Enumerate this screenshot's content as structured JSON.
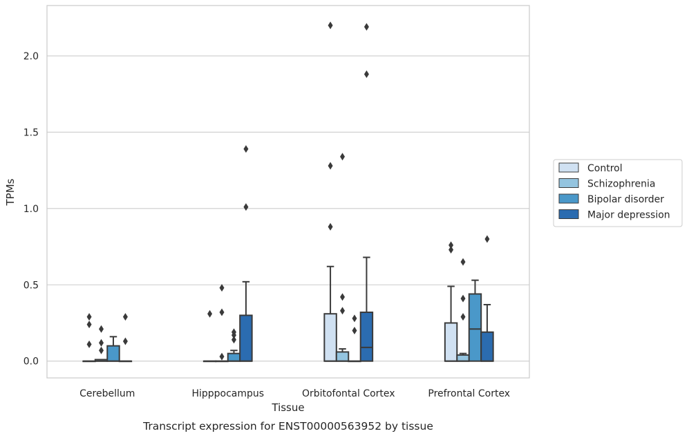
{
  "chart_data": {
    "type": "boxplot",
    "title": "",
    "xlabel": "Tissue",
    "ylabel": "TPMs",
    "caption": "Transcript expression for ENST00000563952 by tissue",
    "ylim": [
      -0.11,
      2.33
    ],
    "yticks": [
      0.0,
      0.5,
      1.0,
      1.5,
      2.0
    ],
    "ytick_labels": [
      "0.0",
      "0.5",
      "1.0",
      "1.5",
      "2.0"
    ],
    "grid": "horizontal",
    "legend_position": "right",
    "categories": [
      "Cerebellum",
      "Hipppocampus",
      "Orbitofontal Cortex",
      "Prefrontal Cortex"
    ],
    "series": [
      {
        "name": "Control",
        "color": "#d0e1f2",
        "boxes": [
          {
            "q1": 0.0,
            "median": 0.0,
            "q3": 0.0,
            "whislo": 0.0,
            "whishi": 0.0,
            "fliers": [
              0.29,
              0.24,
              0.11
            ]
          },
          {
            "q1": 0.0,
            "median": 0.0,
            "q3": 0.0,
            "whislo": 0.0,
            "whishi": 0.0,
            "fliers": [
              0.31
            ]
          },
          {
            "q1": 0.0,
            "median": 0.0,
            "q3": 0.31,
            "whislo": 0.0,
            "whishi": 0.62,
            "fliers": [
              2.2,
              1.28,
              0.88
            ]
          },
          {
            "q1": 0.0,
            "median": 0.0,
            "q3": 0.25,
            "whislo": 0.0,
            "whishi": 0.49,
            "fliers": [
              0.76,
              0.73
            ]
          }
        ]
      },
      {
        "name": "Schizophrenia",
        "color": "#94c4df",
        "boxes": [
          {
            "q1": 0.0,
            "median": 0.0,
            "q3": 0.01,
            "whislo": 0.0,
            "whishi": 0.01,
            "fliers": [
              0.21,
              0.12,
              0.07
            ]
          },
          {
            "q1": 0.0,
            "median": 0.0,
            "q3": 0.0,
            "whislo": 0.0,
            "whishi": 0.0,
            "fliers": [
              0.48,
              0.32,
              0.03
            ]
          },
          {
            "q1": 0.0,
            "median": 0.0,
            "q3": 0.06,
            "whislo": 0.0,
            "whishi": 0.08,
            "fliers": [
              1.34,
              0.42,
              0.33
            ]
          },
          {
            "q1": 0.0,
            "median": 0.0,
            "q3": 0.04,
            "whislo": 0.0,
            "whishi": 0.05,
            "fliers": [
              0.65,
              0.41,
              0.29
            ]
          }
        ]
      },
      {
        "name": "Bipolar disorder",
        "color": "#4a98c9",
        "boxes": [
          {
            "q1": 0.0,
            "median": 0.0,
            "q3": 0.1,
            "whislo": 0.0,
            "whishi": 0.16,
            "fliers": []
          },
          {
            "q1": 0.0,
            "median": 0.0,
            "q3": 0.05,
            "whislo": 0.0,
            "whishi": 0.07,
            "fliers": [
              0.19,
              0.17,
              0.14
            ]
          },
          {
            "q1": 0.0,
            "median": 0.0,
            "q3": 0.0,
            "whislo": 0.0,
            "whishi": 0.0,
            "fliers": [
              0.28,
              0.2
            ]
          },
          {
            "q1": 0.0,
            "median": 0.21,
            "q3": 0.44,
            "whislo": 0.0,
            "whishi": 0.53,
            "fliers": []
          }
        ]
      },
      {
        "name": "Major depression",
        "color": "#2b6cb0",
        "boxes": [
          {
            "q1": 0.0,
            "median": 0.0,
            "q3": 0.0,
            "whislo": 0.0,
            "whishi": 0.0,
            "fliers": [
              0.29,
              0.13
            ]
          },
          {
            "q1": 0.0,
            "median": 0.0,
            "q3": 0.3,
            "whislo": 0.0,
            "whishi": 0.52,
            "fliers": [
              1.39,
              1.01
            ]
          },
          {
            "q1": 0.0,
            "median": 0.09,
            "q3": 0.32,
            "whislo": 0.0,
            "whishi": 0.68,
            "fliers": [
              2.19,
              1.88
            ]
          },
          {
            "q1": 0.0,
            "median": 0.0,
            "q3": 0.19,
            "whislo": 0.0,
            "whishi": 0.37,
            "fliers": [
              0.8
            ]
          }
        ]
      }
    ]
  }
}
